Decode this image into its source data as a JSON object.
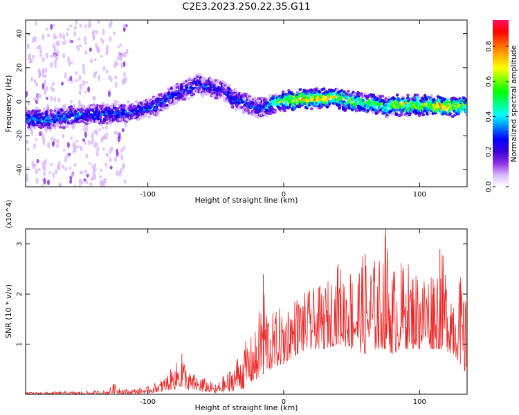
{
  "title": "C2E3.2023.250.22.35.G11",
  "chart_data": [
    {
      "type": "heatmap",
      "title": "C2E3.2023.250.22.35.G11",
      "xlabel": "Height of straight line (km)",
      "ylabel": "Frequency (Hz)",
      "xlim": [
        -190,
        135
      ],
      "ylim": [
        -50,
        48
      ],
      "x_ticks": [
        -100,
        0,
        100
      ],
      "x_tick_labels": [
        "-100",
        "0",
        "100"
      ],
      "y_ticks": [
        -40,
        -20,
        0,
        20,
        40
      ],
      "y_tick_labels": [
        "-40",
        "-20",
        "0",
        "20",
        "40"
      ],
      "grid": false,
      "colorbar": {
        "label": "Normalized spectral amplitude",
        "range": [
          0,
          0.95
        ],
        "ticks": [
          0.0,
          0.2,
          0.4,
          0.6,
          0.8
        ],
        "tick_labels": [
          "0.0",
          "0.2",
          "0.4",
          "0.6",
          "0.8"
        ],
        "colormap": [
          "#ffffff",
          "#d9b8ff",
          "#8a2be2",
          "#3a00e0",
          "#0000ff",
          "#0080ff",
          "#00ffff",
          "#00ff80",
          "#00ff00",
          "#80ff00",
          "#ffff00",
          "#ffb000",
          "#ff6000",
          "#ff0000",
          "#ff1060"
        ]
      },
      "ridge": {
        "x": [
          -190,
          -170,
          -150,
          -130,
          -110,
          -95,
          -85,
          -75,
          -65,
          -55,
          -45,
          -35,
          -25,
          -15,
          -5,
          5,
          15,
          25,
          35,
          45,
          55,
          65,
          75,
          85,
          95,
          105,
          115,
          125,
          135
        ],
        "frequency": [
          -10,
          -10,
          -8,
          -7,
          -6,
          -3,
          2,
          6,
          10,
          9,
          7,
          1,
          -2,
          -4,
          0,
          1,
          1,
          2,
          2,
          1,
          0,
          -1,
          -3,
          -2,
          -2,
          -2,
          -3,
          -3,
          -2
        ],
        "amplitude": [
          0.38,
          0.36,
          0.32,
          0.3,
          0.3,
          0.28,
          0.3,
          0.28,
          0.3,
          0.3,
          0.28,
          0.3,
          0.28,
          0.3,
          0.55,
          0.65,
          0.8,
          0.75,
          0.7,
          0.6,
          0.55,
          0.6,
          0.55,
          0.7,
          0.65,
          0.6,
          0.85,
          0.7,
          0.6
        ]
      }
    },
    {
      "type": "line",
      "xlabel": "Height of straight line (km)",
      "ylabel": "SNR (10 * v/v)",
      "yscale_label": "(x10^4)",
      "xlim": [
        -190,
        135
      ],
      "ylim": [
        0,
        3.3
      ],
      "x_ticks": [
        -100,
        0,
        100
      ],
      "x_tick_labels": [
        "-100",
        "0",
        "100"
      ],
      "y_ticks": [
        1,
        2,
        3
      ],
      "y_tick_labels": [
        "1",
        "2",
        "3"
      ],
      "grid": false,
      "series": [
        {
          "color": "#ee2222",
          "x": [
            -190,
            -170,
            -150,
            -130,
            -125,
            -115,
            -100,
            -90,
            -80,
            -75,
            -70,
            -60,
            -50,
            -40,
            -30,
            -20,
            -15,
            -10,
            0,
            10,
            20,
            30,
            40,
            50,
            60,
            70,
            75,
            80,
            90,
            100,
            110,
            115,
            125,
            130,
            135
          ],
          "values": [
            0.02,
            0.03,
            0.04,
            0.05,
            0.2,
            0.06,
            0.1,
            0.25,
            0.45,
            0.8,
            0.35,
            0.3,
            0.12,
            0.3,
            0.6,
            0.95,
            2.4,
            1.1,
            1.3,
            1.5,
            1.7,
            1.6,
            2.6,
            1.8,
            2.8,
            2.0,
            3.3,
            2.2,
            2.0,
            1.8,
            2.3,
            2.9,
            1.6,
            2.2,
            0.3
          ],
          "envelope_low": [
            0.0,
            0.0,
            0.0,
            0.0,
            0.02,
            0.0,
            0.02,
            0.05,
            0.1,
            0.15,
            0.08,
            0.05,
            0.02,
            0.05,
            0.1,
            0.3,
            0.4,
            0.5,
            0.6,
            0.8,
            0.9,
            0.9,
            1.0,
            0.9,
            0.8,
            0.9,
            0.9,
            0.8,
            0.9,
            0.9,
            0.9,
            0.9,
            0.8,
            0.6,
            0.3
          ],
          "envelope_high": [
            0.04,
            0.05,
            0.06,
            0.08,
            0.22,
            0.1,
            0.15,
            0.3,
            0.6,
            0.85,
            0.45,
            0.35,
            0.2,
            0.5,
            1.0,
            1.3,
            2.4,
            1.6,
            1.8,
            2.0,
            2.1,
            2.2,
            2.6,
            2.6,
            2.8,
            2.7,
            3.3,
            2.6,
            2.7,
            2.5,
            2.6,
            2.9,
            2.4,
            2.4,
            1.8
          ]
        }
      ]
    }
  ]
}
